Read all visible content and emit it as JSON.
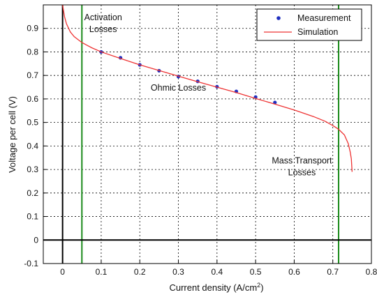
{
  "chart_data": {
    "type": "line",
    "title": "",
    "xlabel_base": "Current density (A/cm",
    "xlabel_sup": "2",
    "xlabel_close": ")",
    "ylabel": "Voltage per cell (V)",
    "xlim": [
      -0.05,
      0.8
    ],
    "ylim": [
      -0.1,
      1.0
    ],
    "x_ticks": [
      0,
      0.1,
      0.2,
      0.3,
      0.4,
      0.5,
      0.6,
      0.7,
      0.8
    ],
    "y_ticks": [
      -0.1,
      0,
      0.1,
      0.2,
      0.3,
      0.4,
      0.5,
      0.6,
      0.7,
      0.8,
      0.9
    ],
    "x_tick_labels": [
      "0",
      "0.1",
      "0.2",
      "0.3",
      "0.4",
      "0.5",
      "0.6",
      "0.7",
      "0.8"
    ],
    "y_tick_labels": [
      "-0.1",
      "0",
      "0.1",
      "0.2",
      "0.3",
      "0.4",
      "0.5",
      "0.6",
      "0.7",
      "0.8",
      "0.9"
    ],
    "grid": true,
    "grid_style": "dotted",
    "legend_position": "top-right",
    "series": [
      {
        "name": "Measurement",
        "kind": "scatter",
        "color": "#1f2fbf",
        "points": [
          [
            0.1,
            0.8
          ],
          [
            0.15,
            0.775
          ],
          [
            0.2,
            0.745
          ],
          [
            0.25,
            0.72
          ],
          [
            0.3,
            0.695
          ],
          [
            0.35,
            0.675
          ],
          [
            0.4,
            0.652
          ],
          [
            0.45,
            0.632
          ],
          [
            0.5,
            0.608
          ],
          [
            0.55,
            0.585
          ]
        ]
      },
      {
        "name": "Simulation",
        "kind": "line",
        "color": "#ee3333",
        "points": [
          [
            0.0,
            1.0
          ],
          [
            0.005,
            0.95
          ],
          [
            0.01,
            0.92
          ],
          [
            0.02,
            0.885
          ],
          [
            0.03,
            0.865
          ],
          [
            0.05,
            0.84
          ],
          [
            0.075,
            0.818
          ],
          [
            0.1,
            0.8
          ],
          [
            0.15,
            0.772
          ],
          [
            0.2,
            0.745
          ],
          [
            0.25,
            0.721
          ],
          [
            0.3,
            0.697
          ],
          [
            0.35,
            0.673
          ],
          [
            0.4,
            0.65
          ],
          [
            0.45,
            0.627
          ],
          [
            0.5,
            0.602
          ],
          [
            0.55,
            0.578
          ],
          [
            0.6,
            0.553
          ],
          [
            0.65,
            0.525
          ],
          [
            0.68,
            0.505
          ],
          [
            0.7,
            0.487
          ],
          [
            0.715,
            0.471
          ],
          [
            0.73,
            0.447
          ],
          [
            0.74,
            0.41
          ],
          [
            0.745,
            0.375
          ],
          [
            0.748,
            0.345
          ],
          [
            0.75,
            0.29
          ]
        ]
      }
    ],
    "reference_lines": [
      {
        "orientation": "vertical",
        "value": 0.05,
        "color": "#1a8a1a"
      },
      {
        "orientation": "vertical",
        "value": 0.715,
        "color": "#1a8a1a"
      },
      {
        "orientation": "vertical",
        "value": 0,
        "color": "#000000"
      },
      {
        "orientation": "horizontal",
        "value": 0,
        "color": "#000000"
      }
    ],
    "annotations": [
      {
        "lines": [
          "Activation",
          "Losses"
        ],
        "x": 0.105,
        "y": 0.935,
        "y2": 0.885
      },
      {
        "lines": [
          "Ohmic Losses"
        ],
        "x": 0.3,
        "y": 0.635
      },
      {
        "lines": [
          "Mass Transport",
          "Losses"
        ],
        "x": 0.62,
        "y": 0.325,
        "y2": 0.275
      }
    ]
  }
}
